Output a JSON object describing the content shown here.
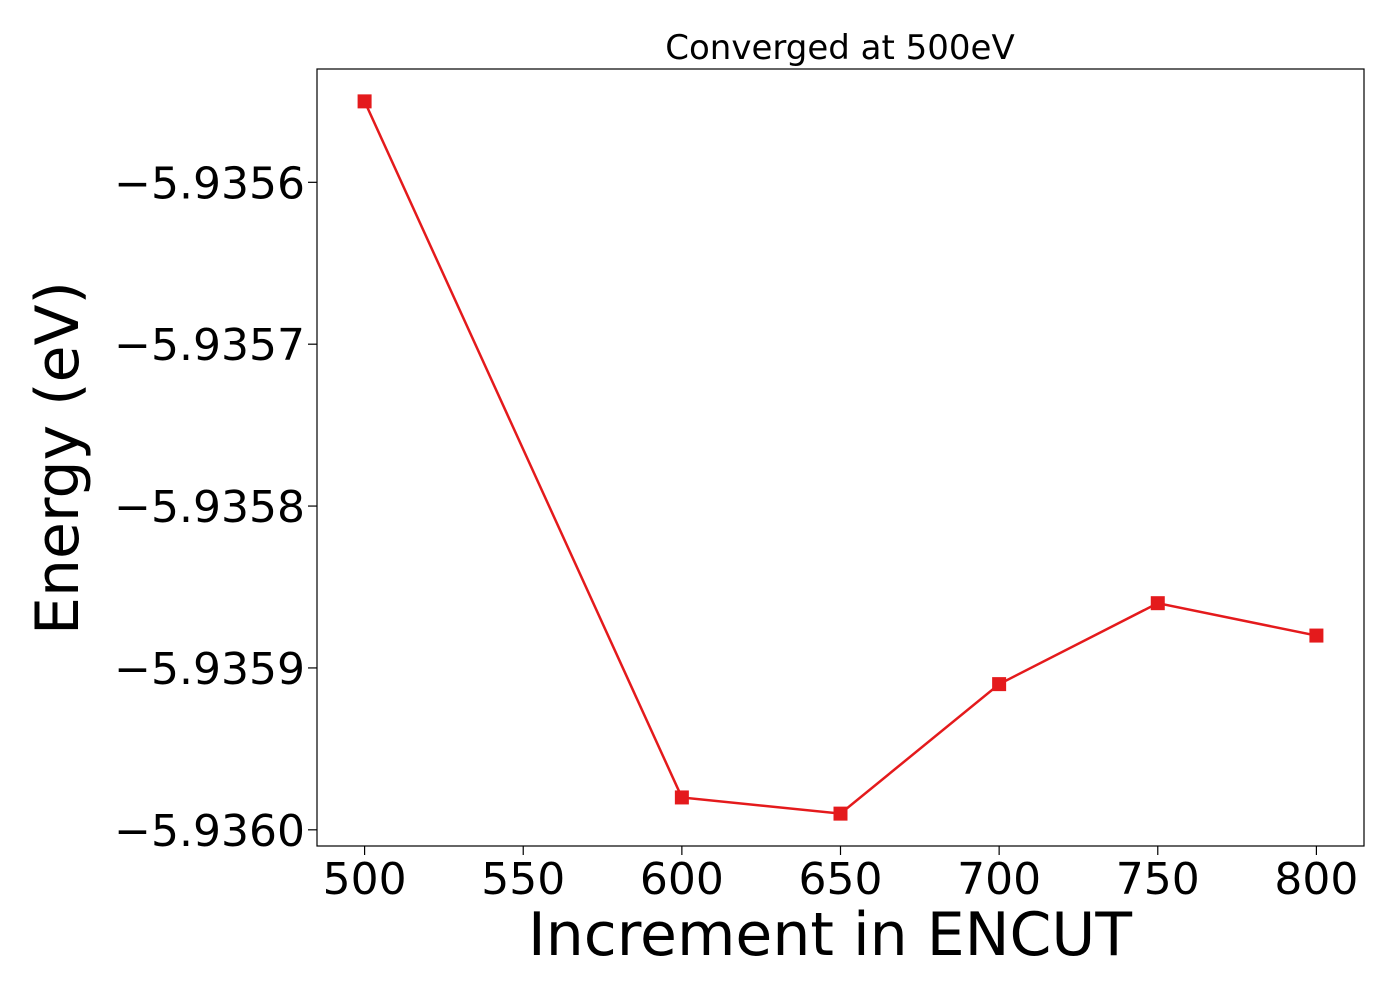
{
  "chart_data": {
    "type": "line",
    "title": "Converged at 500eV",
    "xlabel": "Increment in ENCUT",
    "ylabel": "Energy (eV)",
    "x": [
      500,
      600,
      650,
      700,
      750,
      800
    ],
    "series": [
      {
        "name": "",
        "values": [
          -5.93555,
          -5.93598,
          -5.93599,
          -5.93591,
          -5.93586,
          -5.93588
        ],
        "color": "#e41a1c",
        "marker": "square"
      }
    ],
    "xticks": [
      500,
      550,
      600,
      650,
      700,
      750,
      800
    ],
    "xtick_labels": [
      "500",
      "550",
      "600",
      "650",
      "700",
      "750",
      "800"
    ],
    "yticks": [
      -5.9356,
      -5.9357,
      -5.9358,
      -5.9359,
      -5.936
    ],
    "ytick_labels": [
      "−5.9356",
      "−5.9357",
      "−5.9358",
      "−5.9359",
      "−5.9360"
    ],
    "xlim": [
      485,
      815
    ],
    "ylim": [
      -5.93601,
      -5.93553
    ],
    "grid": false,
    "legend": "none"
  }
}
